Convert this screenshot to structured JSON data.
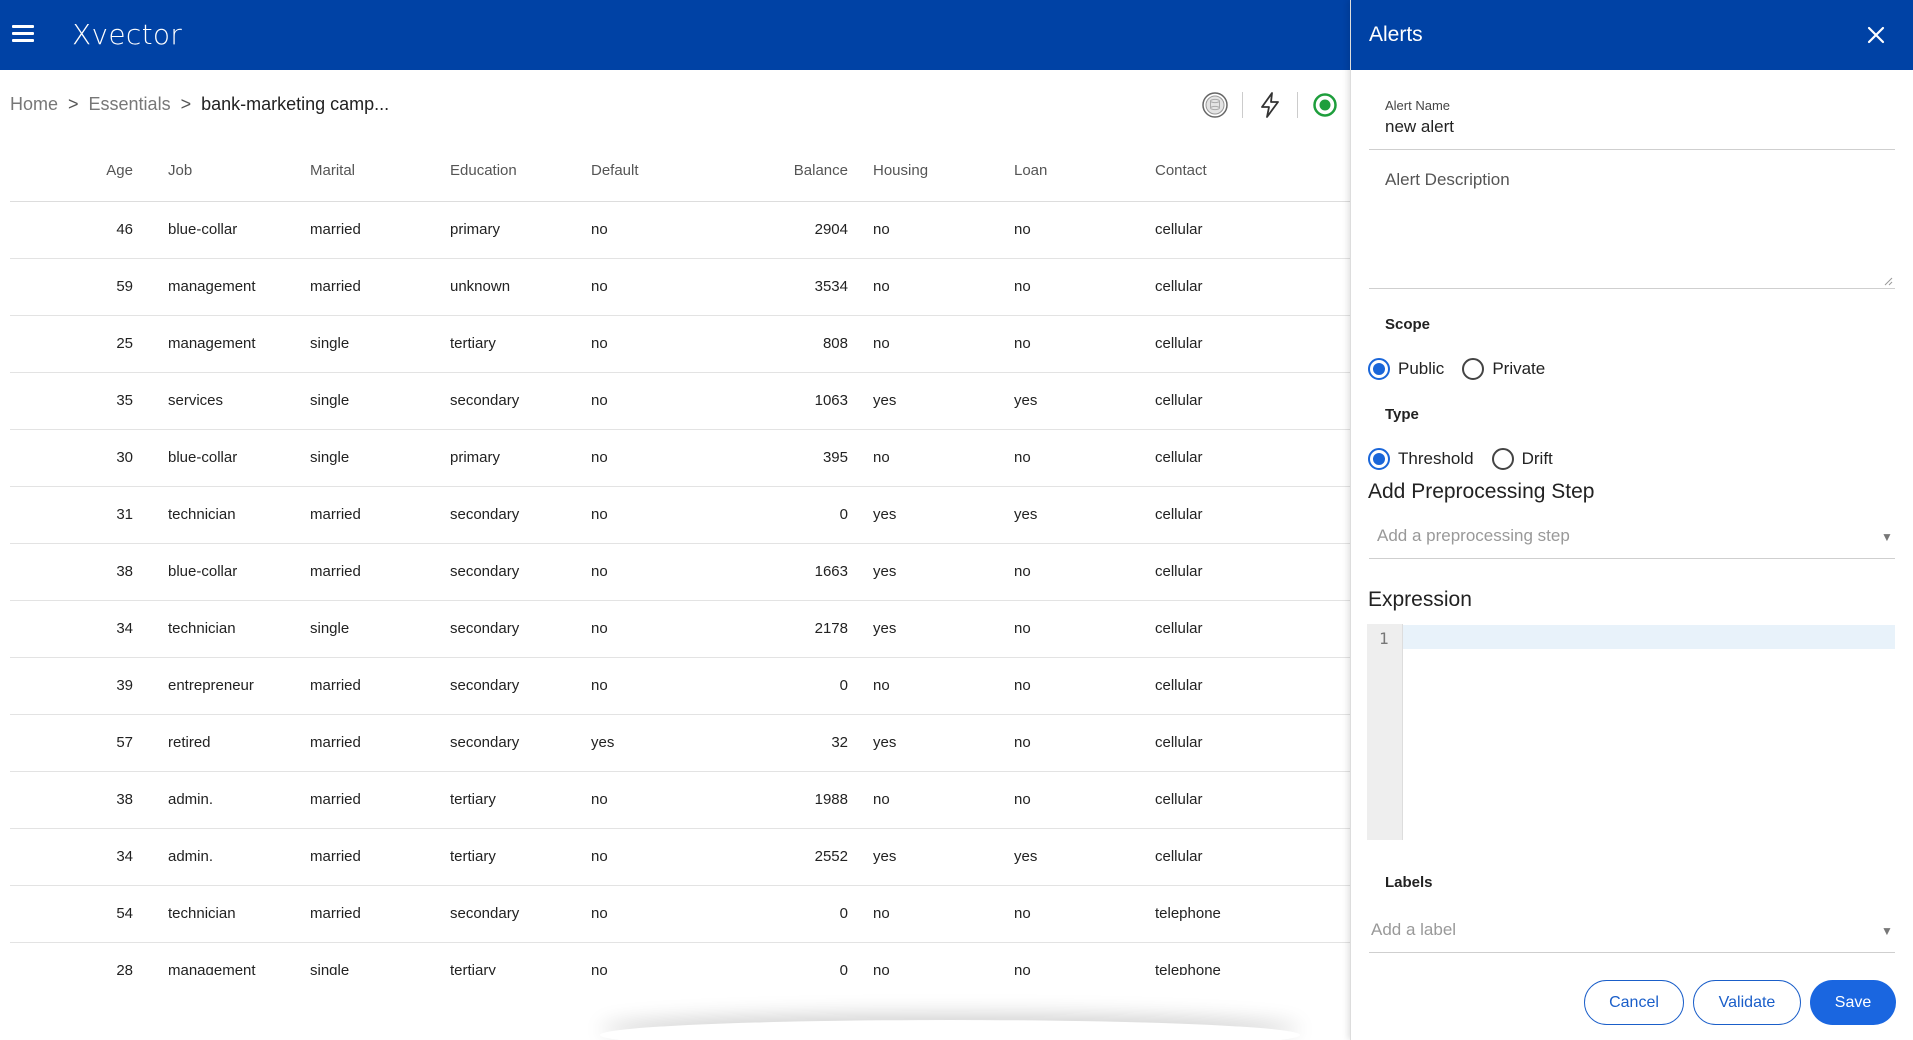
{
  "app": {
    "logo": "Xvector"
  },
  "breadcrumb": {
    "items": [
      "Home",
      "Essentials",
      "bank-marketing camp..."
    ],
    "separator": ">"
  },
  "toolbar": {
    "icons": [
      "database-icon",
      "lightning-icon",
      "status-active-icon"
    ]
  },
  "table": {
    "columns": [
      "Age",
      "Job",
      "Marital",
      "Education",
      "Default",
      "Balance",
      "Housing",
      "Loan",
      "Contact"
    ],
    "rows": [
      [
        "46",
        "blue-collar",
        "married",
        "primary",
        "no",
        "2904",
        "no",
        "no",
        "cellular"
      ],
      [
        "59",
        "management",
        "married",
        "unknown",
        "no",
        "3534",
        "no",
        "no",
        "cellular"
      ],
      [
        "25",
        "management",
        "single",
        "tertiary",
        "no",
        "808",
        "no",
        "no",
        "cellular"
      ],
      [
        "35",
        "services",
        "single",
        "secondary",
        "no",
        "1063",
        "yes",
        "yes",
        "cellular"
      ],
      [
        "30",
        "blue-collar",
        "single",
        "primary",
        "no",
        "395",
        "no",
        "no",
        "cellular"
      ],
      [
        "31",
        "technician",
        "married",
        "secondary",
        "no",
        "0",
        "yes",
        "yes",
        "cellular"
      ],
      [
        "38",
        "blue-collar",
        "married",
        "secondary",
        "no",
        "1663",
        "yes",
        "no",
        "cellular"
      ],
      [
        "34",
        "technician",
        "single",
        "secondary",
        "no",
        "2178",
        "yes",
        "no",
        "cellular"
      ],
      [
        "39",
        "entrepreneur",
        "married",
        "secondary",
        "no",
        "0",
        "no",
        "no",
        "cellular"
      ],
      [
        "57",
        "retired",
        "married",
        "secondary",
        "yes",
        "32",
        "yes",
        "no",
        "cellular"
      ],
      [
        "38",
        "admin.",
        "married",
        "tertiary",
        "no",
        "1988",
        "no",
        "no",
        "cellular"
      ],
      [
        "34",
        "admin.",
        "married",
        "tertiary",
        "no",
        "2552",
        "yes",
        "yes",
        "cellular"
      ],
      [
        "54",
        "technician",
        "married",
        "secondary",
        "no",
        "0",
        "no",
        "no",
        "telephone"
      ],
      [
        "28",
        "management",
        "single",
        "tertiary",
        "no",
        "0",
        "no",
        "no",
        "telephone"
      ]
    ]
  },
  "drawer": {
    "title": "Alerts",
    "alert_name": {
      "label": "Alert Name",
      "value": "new alert"
    },
    "alert_description": {
      "placeholder": "Alert Description",
      "value": ""
    },
    "scope": {
      "label": "Scope",
      "options": [
        "Public",
        "Private"
      ],
      "selected": "Public"
    },
    "type": {
      "label": "Type",
      "options": [
        "Threshold",
        "Drift"
      ],
      "selected": "Threshold"
    },
    "preprocessing": {
      "title": "Add Preprocessing Step",
      "placeholder": "Add a preprocessing step"
    },
    "expression": {
      "title": "Expression",
      "line_number": "1",
      "value": ""
    },
    "labels": {
      "label": "Labels",
      "placeholder": "Add a label"
    },
    "buttons": {
      "cancel": "Cancel",
      "validate": "Validate",
      "save": "Save"
    }
  },
  "colors": {
    "brand_blue": "#0042a5",
    "accent_blue": "#1a66e0",
    "status_green": "#1e9e3c"
  }
}
